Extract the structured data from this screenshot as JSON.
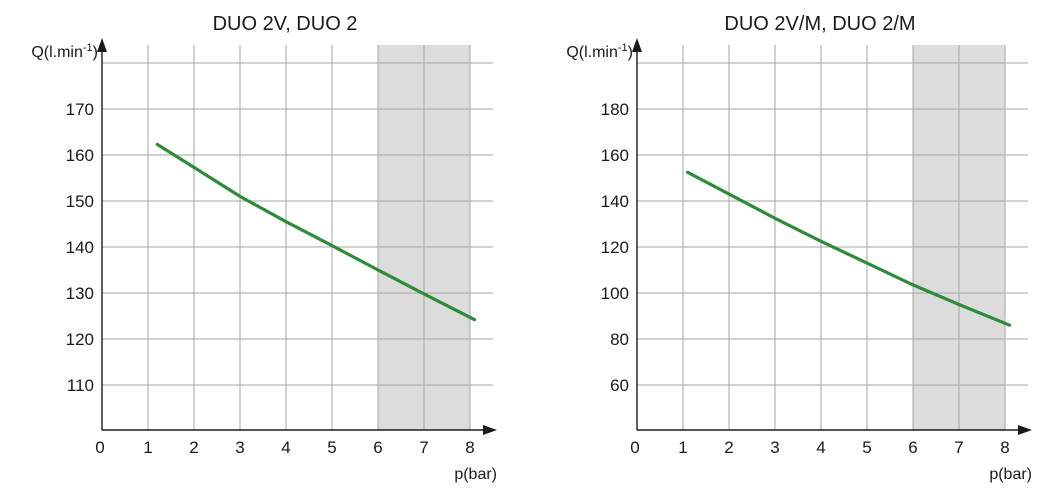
{
  "chart_data": [
    {
      "type": "line",
      "title": "DUO 2V, DUO 2",
      "ylabel": "Q(l.min",
      "ylabel_sup": "-1",
      "ylabel_end": ")",
      "xlabel": "p(bar)",
      "xlim": [
        0,
        8.5
      ],
      "ylim": [
        100,
        180
      ],
      "x_ticks": [
        0,
        1,
        2,
        3,
        4,
        5,
        6,
        7,
        8
      ],
      "y_ticks": [
        110,
        120,
        130,
        140,
        150,
        160,
        170
      ],
      "grid": true,
      "shaded_region": {
        "x_from": 6,
        "x_to": 8,
        "color": "#dcdcdc"
      },
      "series": [
        {
          "color": "#2e8b3a",
          "x": [
            1.2,
            2,
            3,
            4,
            5,
            6,
            7,
            8.1
          ],
          "y": [
            162.3,
            157.3,
            151,
            145.5,
            140.3,
            135,
            129.8,
            124.2
          ]
        }
      ]
    },
    {
      "type": "line",
      "title": "DUO 2V/M, DUO 2/M",
      "ylabel": "Q(l.min",
      "ylabel_sup": "-1",
      "ylabel_end": ")",
      "xlabel": "p(bar)",
      "xlim": [
        0,
        8.5
      ],
      "ylim": [
        40,
        200
      ],
      "x_ticks": [
        0,
        1,
        2,
        3,
        4,
        5,
        6,
        7,
        8
      ],
      "y_ticks": [
        60,
        80,
        100,
        120,
        140,
        160,
        180
      ],
      "grid": true,
      "shaded_region": {
        "x_from": 6,
        "x_to": 8,
        "color": "#dcdcdc"
      },
      "series": [
        {
          "color": "#2e8b3a",
          "x": [
            1.1,
            2,
            3,
            4,
            5,
            6,
            7,
            8.1
          ],
          "y": [
            152.5,
            143,
            132.5,
            122.5,
            113,
            103.5,
            95,
            86
          ]
        }
      ]
    }
  ]
}
